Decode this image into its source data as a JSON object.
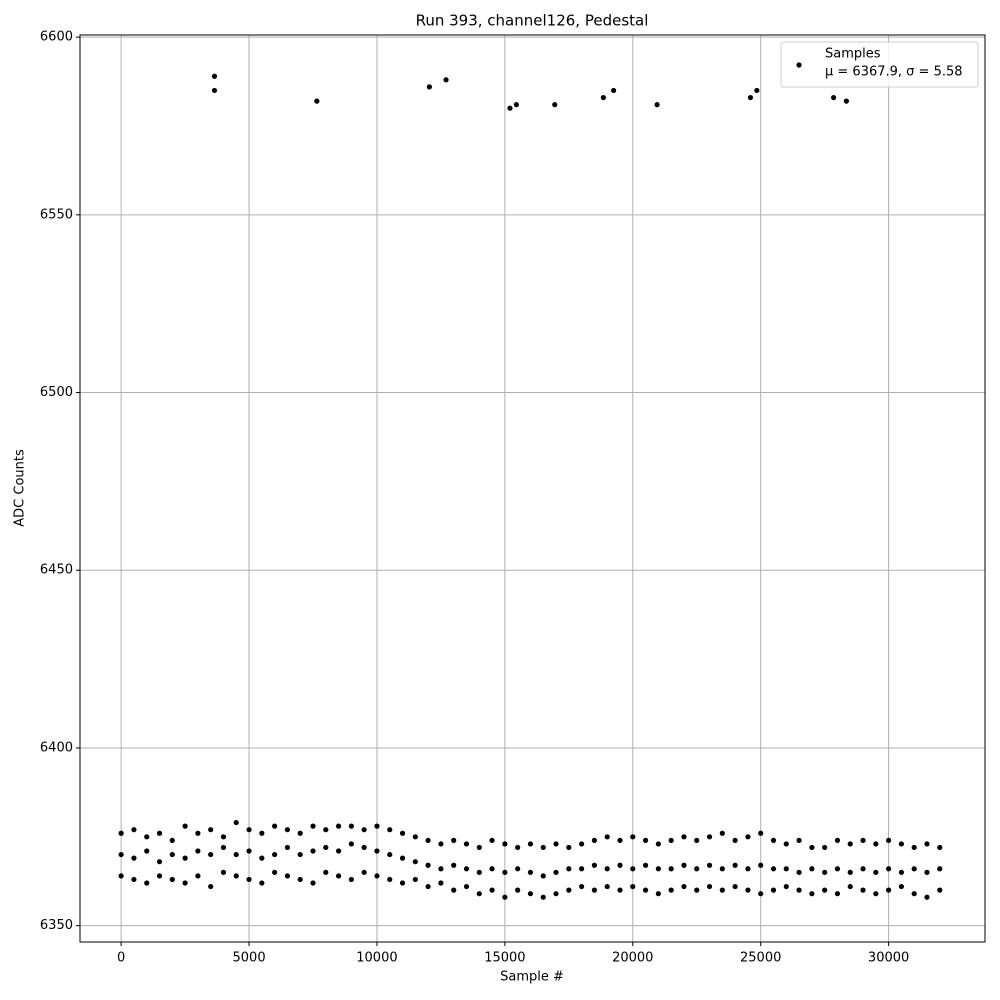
{
  "chart_data": {
    "type": "scatter",
    "title": "Run 393, channel126, Pedestal",
    "x_label": "Sample #",
    "y_label": "ADC Counts",
    "xlim": [
      -1608,
      33768
    ],
    "ylim": [
      6345.4,
      6600.6
    ],
    "xticks": [
      0,
      5000,
      10000,
      15000,
      20000,
      25000,
      30000
    ],
    "yticks": [
      6350,
      6400,
      6450,
      6500,
      6550,
      6600
    ],
    "grid": true,
    "legend": "upper right",
    "legend_note": "μ = 6367.9, σ = 5.58",
    "series": [
      {
        "name": "Samples",
        "color": "#000000",
        "x": [
          0,
          0,
          0,
          500,
          500,
          500,
          1000,
          1000,
          1000,
          1500,
          1500,
          1500,
          2000,
          2000,
          2000,
          2500,
          2500,
          2500,
          3000,
          3000,
          3000,
          3500,
          3500,
          3500,
          4000,
          4000,
          4000,
          4500,
          4500,
          4500,
          5000,
          5000,
          5000,
          5500,
          5500,
          5500,
          6000,
          6000,
          6000,
          6500,
          6500,
          6500,
          7000,
          7000,
          7000,
          7500,
          7500,
          7500,
          8000,
          8000,
          8000,
          8500,
          8500,
          8500,
          9000,
          9000,
          9000,
          9500,
          9500,
          9500,
          10000,
          10000,
          10000,
          10500,
          10500,
          10500,
          11000,
          11000,
          11000,
          11500,
          11500,
          11500,
          12000,
          12000,
          12000,
          12500,
          12500,
          12500,
          13000,
          13000,
          13000,
          13500,
          13500,
          13500,
          14000,
          14000,
          14000,
          14500,
          14500,
          14500,
          15000,
          15000,
          15000,
          15500,
          15500,
          15500,
          16000,
          16000,
          16000,
          16500,
          16500,
          16500,
          17000,
          17000,
          17000,
          17500,
          17500,
          17500,
          18000,
          18000,
          18000,
          18500,
          18500,
          18500,
          19000,
          19000,
          19000,
          19500,
          19500,
          19500,
          20000,
          20000,
          20000,
          20500,
          20500,
          20500,
          21000,
          21000,
          21000,
          21500,
          21500,
          21500,
          22000,
          22000,
          22000,
          22500,
          22500,
          22500,
          23000,
          23000,
          23000,
          23500,
          23500,
          23500,
          24000,
          24000,
          24000,
          24500,
          24500,
          24500,
          25000,
          25000,
          25000,
          25500,
          25500,
          25500,
          26000,
          26000,
          26000,
          26500,
          26500,
          26500,
          27000,
          27000,
          27000,
          27500,
          27500,
          27500,
          28000,
          28000,
          28000,
          28500,
          28500,
          28500,
          29000,
          29000,
          29000,
          29500,
          29500,
          29500,
          30000,
          30000,
          30000,
          30500,
          30500,
          30500,
          31000,
          31000,
          31000,
          31500,
          31500,
          31500,
          32000,
          32000,
          32000,
          3650,
          3650,
          7650,
          12050,
          12700,
          15200,
          15450,
          16950,
          18850,
          19250,
          20950,
          24600,
          24850,
          27850,
          28350
        ],
        "values": [
          6376,
          6370,
          6364,
          6377,
          6369,
          6363,
          6375,
          6371,
          6362,
          6376,
          6368,
          6364,
          6374,
          6370,
          6363,
          6378,
          6369,
          6362,
          6376,
          6371,
          6364,
          6377,
          6370,
          6361,
          6375,
          6372,
          6365,
          6379,
          6370,
          6364,
          6377,
          6371,
          6363,
          6376,
          6369,
          6362,
          6378,
          6370,
          6365,
          6377,
          6372,
          6364,
          6376,
          6370,
          6363,
          6378,
          6371,
          6362,
          6377,
          6372,
          6365,
          6378,
          6371,
          6364,
          6378,
          6373,
          6363,
          6377,
          6372,
          6365,
          6378,
          6371,
          6364,
          6377,
          6370,
          6363,
          6376,
          6369,
          6362,
          6375,
          6368,
          6363,
          6374,
          6367,
          6361,
          6373,
          6366,
          6362,
          6374,
          6367,
          6360,
          6373,
          6366,
          6361,
          6372,
          6365,
          6359,
          6374,
          6366,
          6360,
          6373,
          6365,
          6358,
          6372,
          6366,
          6360,
          6373,
          6365,
          6359,
          6372,
          6364,
          6358,
          6373,
          6365,
          6359,
          6372,
          6366,
          6360,
          6373,
          6366,
          6361,
          6374,
          6367,
          6360,
          6375,
          6366,
          6361,
          6374,
          6367,
          6360,
          6375,
          6366,
          6361,
          6374,
          6367,
          6360,
          6373,
          6366,
          6359,
          6374,
          6366,
          6360,
          6375,
          6367,
          6361,
          6374,
          6366,
          6360,
          6375,
          6367,
          6361,
          6376,
          6366,
          6360,
          6374,
          6367,
          6361,
          6375,
          6366,
          6360,
          6376,
          6367,
          6359,
          6374,
          6366,
          6360,
          6373,
          6366,
          6361,
          6374,
          6365,
          6360,
          6372,
          6366,
          6359,
          6372,
          6365,
          6360,
          6374,
          6366,
          6359,
          6373,
          6365,
          6361,
          6374,
          6366,
          6360,
          6373,
          6365,
          6359,
          6374,
          6366,
          6360,
          6373,
          6365,
          6361,
          6372,
          6366,
          6359,
          6373,
          6365,
          6358,
          6372,
          6366,
          6360,
          6589,
          6585,
          6582,
          6586,
          6588,
          6580,
          6581,
          6581,
          6583,
          6585,
          6581,
          6583,
          6585,
          6583,
          6582
        ]
      }
    ]
  }
}
